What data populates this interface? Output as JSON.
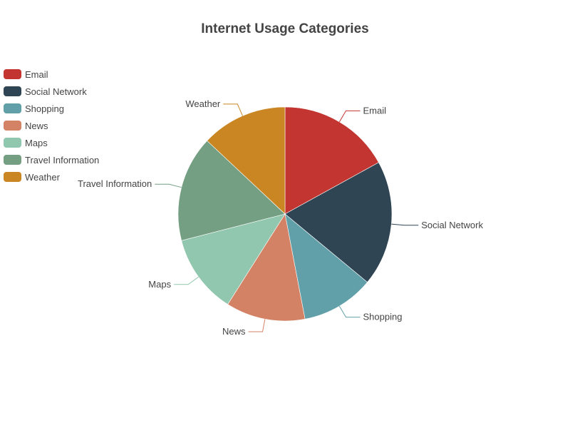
{
  "chart_data": {
    "type": "pie",
    "title": "Internet Usage Categories",
    "legend_placement": "top-left",
    "slices": [
      {
        "name": "Email",
        "value": 17,
        "color": "#c23531"
      },
      {
        "name": "Social Network",
        "value": 19,
        "color": "#2f4554"
      },
      {
        "name": "Shopping",
        "value": 11,
        "color": "#61a0a8"
      },
      {
        "name": "News",
        "value": 12,
        "color": "#d48265"
      },
      {
        "name": "Maps",
        "value": 12,
        "color": "#91c7ae"
      },
      {
        "name": "Travel Information",
        "value": 16,
        "color": "#749f83"
      },
      {
        "name": "Weather",
        "value": 13,
        "color": "#ca8622"
      }
    ]
  }
}
